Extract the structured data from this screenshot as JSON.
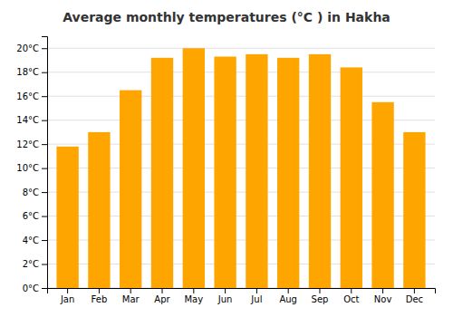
{
  "chart_data": {
    "type": "bar",
    "title": "Average monthly temperatures (°C ) in Hakha",
    "categories": [
      "Jan",
      "Feb",
      "Mar",
      "Apr",
      "May",
      "Jun",
      "Jul",
      "Aug",
      "Sep",
      "Oct",
      "Nov",
      "Dec"
    ],
    "values": [
      11.8,
      13.0,
      16.5,
      19.2,
      20.0,
      19.3,
      19.5,
      19.2,
      19.5,
      18.4,
      15.5,
      13.0
    ],
    "color": "#FFA500",
    "ylim": [
      0,
      21
    ],
    "yticks": [
      {
        "value": 0,
        "label": "0°C"
      },
      {
        "value": 2,
        "label": "2°C"
      },
      {
        "value": 4,
        "label": "4°C"
      },
      {
        "value": 6,
        "label": "6°C"
      },
      {
        "value": 8,
        "label": "8°C"
      },
      {
        "value": 10,
        "label": "10°C"
      },
      {
        "value": 12,
        "label": "12°C"
      },
      {
        "value": 14,
        "label": "14°C"
      },
      {
        "value": 16,
        "label": "16°C"
      },
      {
        "value": 18,
        "label": "18°C"
      },
      {
        "value": 20,
        "label": "20°C"
      }
    ],
    "grid": true
  }
}
